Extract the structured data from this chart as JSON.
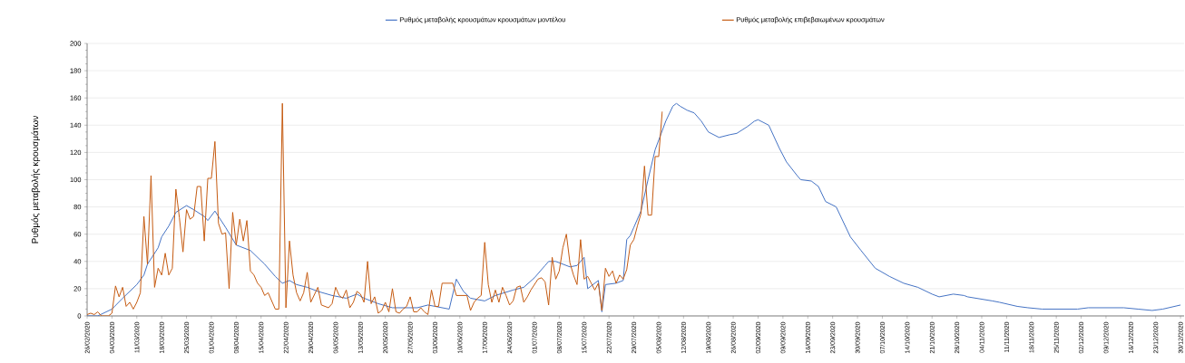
{
  "chart_data": {
    "type": "line",
    "ylabel": "Ρυθμός μεταβολής κρουσμάτων",
    "xlim": [
      "2020-02-26",
      "2020-12-31"
    ],
    "ylim": [
      0,
      200
    ],
    "yticks": [
      0,
      20,
      40,
      60,
      80,
      100,
      120,
      140,
      160,
      180,
      200
    ],
    "xticks": [
      {
        "value": "2020-02-26",
        "label": "26/02/2020"
      },
      {
        "value": "2020-03-04",
        "label": "04/03/2020"
      },
      {
        "value": "2020-03-11",
        "label": "11/03/2020"
      },
      {
        "value": "2020-03-18",
        "label": "18/03/2020"
      },
      {
        "value": "2020-03-25",
        "label": "25/03/2020"
      },
      {
        "value": "2020-04-01",
        "label": "01/04/2020"
      },
      {
        "value": "2020-04-08",
        "label": "08/04/2020"
      },
      {
        "value": "2020-04-15",
        "label": "15/04/2020"
      },
      {
        "value": "2020-04-22",
        "label": "22/04/2020"
      },
      {
        "value": "2020-04-29",
        "label": "29/04/2020"
      },
      {
        "value": "2020-05-06",
        "label": "06/05/2020"
      },
      {
        "value": "2020-05-13",
        "label": "13/05/2020"
      },
      {
        "value": "2020-05-20",
        "label": "20/05/2020"
      },
      {
        "value": "2020-05-27",
        "label": "27/05/2020"
      },
      {
        "value": "2020-06-03",
        "label": "03/06/2020"
      },
      {
        "value": "2020-06-10",
        "label": "10/06/2020"
      },
      {
        "value": "2020-06-17",
        "label": "17/06/2020"
      },
      {
        "value": "2020-06-24",
        "label": "24/06/2020"
      },
      {
        "value": "2020-07-01",
        "label": "01/07/2020"
      },
      {
        "value": "2020-07-08",
        "label": "08/07/2020"
      },
      {
        "value": "2020-07-15",
        "label": "15/07/2020"
      },
      {
        "value": "2020-07-22",
        "label": "22/07/2020"
      },
      {
        "value": "2020-07-29",
        "label": "29/07/2020"
      },
      {
        "value": "2020-08-05",
        "label": "05/08/2020"
      },
      {
        "value": "2020-08-12",
        "label": "12/08/2020"
      },
      {
        "value": "2020-08-19",
        "label": "19/08/2020"
      },
      {
        "value": "2020-08-26",
        "label": "26/08/2020"
      },
      {
        "value": "2020-09-02",
        "label": "02/09/2020"
      },
      {
        "value": "2020-09-09",
        "label": "09/09/2020"
      },
      {
        "value": "2020-09-16",
        "label": "16/09/2020"
      },
      {
        "value": "2020-09-23",
        "label": "23/09/2020"
      },
      {
        "value": "2020-09-30",
        "label": "30/09/2020"
      },
      {
        "value": "2020-10-07",
        "label": "07/10/2020"
      },
      {
        "value": "2020-10-14",
        "label": "14/10/2020"
      },
      {
        "value": "2020-10-21",
        "label": "21/10/2020"
      },
      {
        "value": "2020-10-28",
        "label": "28/10/2020"
      },
      {
        "value": "2020-11-04",
        "label": "04/11/2020"
      },
      {
        "value": "2020-11-11",
        "label": "11/11/2020"
      },
      {
        "value": "2020-11-18",
        "label": "18/11/2020"
      },
      {
        "value": "2020-11-25",
        "label": "25/11/2020"
      },
      {
        "value": "2020-12-02",
        "label": "02/12/2020"
      },
      {
        "value": "2020-12-09",
        "label": "09/12/2020"
      },
      {
        "value": "2020-12-16",
        "label": "16/12/2020"
      },
      {
        "value": "2020-12-23",
        "label": "23/12/2020"
      },
      {
        "value": "2020-12-30",
        "label": "30/12/2020"
      }
    ],
    "grid": "y",
    "legend": "top",
    "marker": "none",
    "line_style": "solid",
    "series": [
      {
        "name": "Ρυθμός μεταβολής κρουσμάτων κρουσμάτων μοντέλου",
        "color": "#4472c4",
        "x": [
          "2020-02-26",
          "2020-02-29",
          "2020-03-04",
          "2020-03-07",
          "2020-03-11",
          "2020-03-13",
          "2020-03-14",
          "2020-03-17",
          "2020-03-18",
          "2020-03-20",
          "2020-03-22",
          "2020-03-25",
          "2020-03-27",
          "2020-03-30",
          "2020-03-31",
          "2020-04-02",
          "2020-04-05",
          "2020-04-08",
          "2020-04-12",
          "2020-04-16",
          "2020-04-19",
          "2020-04-21",
          "2020-04-23",
          "2020-04-25",
          "2020-04-28",
          "2020-05-01",
          "2020-05-05",
          "2020-05-09",
          "2020-05-12",
          "2020-05-14",
          "2020-05-18",
          "2020-05-22",
          "2020-05-29",
          "2020-06-01",
          "2020-06-03",
          "2020-06-07",
          "2020-06-09",
          "2020-06-11",
          "2020-06-13",
          "2020-06-17",
          "2020-06-20",
          "2020-06-25",
          "2020-06-28",
          "2020-07-01",
          "2020-07-04",
          "2020-07-05",
          "2020-07-07",
          "2020-07-11",
          "2020-07-13",
          "2020-07-15",
          "2020-07-16",
          "2020-07-19",
          "2020-07-20",
          "2020-07-21",
          "2020-07-24",
          "2020-07-26",
          "2020-07-27",
          "2020-07-28",
          "2020-07-29",
          "2020-07-31",
          "2020-08-02",
          "2020-08-04",
          "2020-08-07",
          "2020-08-09",
          "2020-08-10",
          "2020-08-11",
          "2020-08-13",
          "2020-08-15",
          "2020-08-17",
          "2020-08-19",
          "2020-08-22",
          "2020-08-25",
          "2020-08-27",
          "2020-08-30",
          "2020-09-01",
          "2020-09-02",
          "2020-09-05",
          "2020-09-08",
          "2020-09-10",
          "2020-09-13",
          "2020-09-14",
          "2020-09-17",
          "2020-09-19",
          "2020-09-21",
          "2020-09-24",
          "2020-09-28",
          "2020-10-01",
          "2020-10-05",
          "2020-10-09",
          "2020-10-13",
          "2020-10-17",
          "2020-10-21",
          "2020-10-23",
          "2020-10-27",
          "2020-10-30",
          "2020-10-31",
          "2020-11-07",
          "2020-11-09",
          "2020-11-14",
          "2020-11-17",
          "2020-11-21",
          "2020-11-25",
          "2020-12-01",
          "2020-12-04",
          "2020-12-14",
          "2020-12-18",
          "2020-12-22",
          "2020-12-25",
          "2020-12-30"
        ],
        "values": [
          0,
          0,
          5,
          13,
          23,
          30,
          38,
          50,
          58,
          66,
          76,
          81,
          78,
          73,
          70,
          77,
          65,
          52,
          48,
          38,
          29,
          24,
          26,
          23,
          21,
          18,
          15,
          13,
          16,
          13,
          9,
          6,
          6,
          8,
          7,
          5,
          27,
          18,
          13,
          11,
          15,
          19,
          21,
          28,
          37,
          40,
          40,
          36,
          37,
          43,
          20,
          26,
          3,
          23,
          24,
          26,
          56,
          59,
          65,
          77,
          100,
          122,
          143,
          154,
          156,
          154,
          151,
          149,
          143,
          135,
          131,
          133,
          134,
          139,
          143,
          144,
          140,
          123,
          113,
          103,
          100,
          99,
          95,
          84,
          80,
          58,
          48,
          35,
          29,
          24,
          21,
          16,
          14,
          16,
          15,
          14,
          11,
          10,
          7,
          6,
          5,
          5,
          5,
          6,
          6,
          5,
          4,
          5,
          8
        ]
      },
      {
        "name": "Ρυθμός μεταβολής επιβεβαιωμένων κρουσμάτων",
        "color": "#c55a11",
        "x": [
          "2020-02-26",
          "2020-02-27",
          "2020-02-28",
          "2020-02-29",
          "2020-03-01",
          "2020-03-03",
          "2020-03-04",
          "2020-03-05",
          "2020-03-06",
          "2020-03-07",
          "2020-03-08",
          "2020-03-09",
          "2020-03-10",
          "2020-03-11",
          "2020-03-12",
          "2020-03-13",
          "2020-03-14",
          "2020-03-15",
          "2020-03-16",
          "2020-03-17",
          "2020-03-18",
          "2020-03-19",
          "2020-03-20",
          "2020-03-21",
          "2020-03-22",
          "2020-03-23",
          "2020-03-24",
          "2020-03-25",
          "2020-03-26",
          "2020-03-27",
          "2020-03-28",
          "2020-03-29",
          "2020-03-30",
          "2020-03-31",
          "2020-04-01",
          "2020-04-02",
          "2020-04-03",
          "2020-04-04",
          "2020-04-05",
          "2020-04-06",
          "2020-04-07",
          "2020-04-08",
          "2020-04-09",
          "2020-04-10",
          "2020-04-11",
          "2020-04-12",
          "2020-04-13",
          "2020-04-14",
          "2020-04-15",
          "2020-04-16",
          "2020-04-17",
          "2020-04-19",
          "2020-04-20",
          "2020-04-21",
          "2020-04-22",
          "2020-04-23",
          "2020-04-24",
          "2020-04-25",
          "2020-04-26",
          "2020-04-27",
          "2020-04-28",
          "2020-04-29",
          "2020-05-01",
          "2020-05-02",
          "2020-05-04",
          "2020-05-05",
          "2020-05-06",
          "2020-05-07",
          "2020-05-08",
          "2020-05-09",
          "2020-05-10",
          "2020-05-11",
          "2020-05-12",
          "2020-05-13",
          "2020-05-14",
          "2020-05-15",
          "2020-05-16",
          "2020-05-17",
          "2020-05-18",
          "2020-05-19",
          "2020-05-20",
          "2020-05-21",
          "2020-05-22",
          "2020-05-23",
          "2020-05-24",
          "2020-05-25",
          "2020-05-26",
          "2020-05-27",
          "2020-05-28",
          "2020-05-29",
          "2020-05-30",
          "2020-05-31",
          "2020-06-01",
          "2020-06-02",
          "2020-06-03",
          "2020-06-04",
          "2020-06-05",
          "2020-06-08",
          "2020-06-09",
          "2020-06-12",
          "2020-06-13",
          "2020-06-14",
          "2020-06-15",
          "2020-06-16",
          "2020-06-17",
          "2020-06-18",
          "2020-06-19",
          "2020-06-20",
          "2020-06-21",
          "2020-06-22",
          "2020-06-23",
          "2020-06-24",
          "2020-06-25",
          "2020-06-26",
          "2020-06-27",
          "2020-06-28",
          "2020-06-29",
          "2020-06-30",
          "2020-07-02",
          "2020-07-03",
          "2020-07-04",
          "2020-07-05",
          "2020-07-06",
          "2020-07-07",
          "2020-07-08",
          "2020-07-09",
          "2020-07-10",
          "2020-07-11",
          "2020-07-12",
          "2020-07-13",
          "2020-07-14",
          "2020-07-15",
          "2020-07-16",
          "2020-07-17",
          "2020-07-18",
          "2020-07-19",
          "2020-07-20",
          "2020-07-21",
          "2020-07-22",
          "2020-07-23",
          "2020-07-24",
          "2020-07-25",
          "2020-07-26",
          "2020-07-27",
          "2020-07-28",
          "2020-07-29",
          "2020-07-30",
          "2020-07-31",
          "2020-08-01",
          "2020-08-02",
          "2020-08-03",
          "2020-08-04",
          "2020-08-05",
          "2020-08-06"
        ],
        "values": [
          1,
          2,
          1,
          3,
          0,
          0,
          2,
          22,
          14,
          21,
          7,
          10,
          5,
          10,
          17,
          73,
          38,
          103,
          21,
          35,
          30,
          46,
          30,
          35,
          93,
          72,
          47,
          78,
          71,
          73,
          95,
          95,
          55,
          101,
          101,
          128,
          68,
          60,
          61,
          20,
          76,
          52,
          71,
          55,
          70,
          33,
          30,
          24,
          21,
          15,
          17,
          5,
          5,
          156,
          6,
          55,
          30,
          17,
          11,
          17,
          32,
          10,
          21,
          8,
          6,
          9,
          21,
          15,
          13,
          19,
          6,
          10,
          18,
          16,
          10,
          40,
          9,
          14,
          2,
          4,
          10,
          3,
          20,
          3,
          2,
          5,
          7,
          14,
          3,
          3,
          6,
          3,
          1,
          19,
          7,
          7,
          24,
          24,
          15,
          15,
          4,
          10,
          13,
          15,
          54,
          23,
          10,
          19,
          10,
          21,
          15,
          8,
          11,
          21,
          22,
          10,
          14,
          19,
          27,
          28,
          25,
          8,
          43,
          27,
          33,
          50,
          60,
          39,
          30,
          23,
          56,
          27,
          29,
          24,
          19,
          24,
          4,
          35,
          29,
          33,
          24,
          30,
          27,
          34,
          52,
          56,
          66,
          75,
          110,
          74,
          74,
          117,
          117,
          150
        ]
      }
    ]
  }
}
